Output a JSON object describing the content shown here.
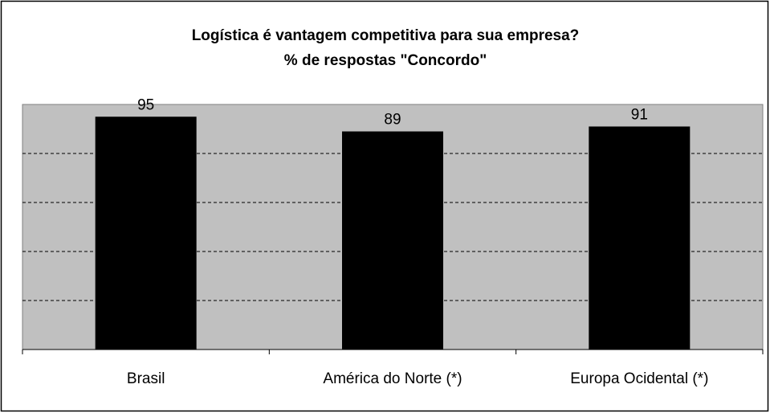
{
  "chart_data": {
    "type": "bar",
    "title": "Logística é vantagem competitiva para sua empresa?",
    "subtitle": "% de respostas \"Concordo\"",
    "categories": [
      "Brasil",
      "América do Norte (*)",
      "Europa Ocidental (*)"
    ],
    "values": [
      95,
      89,
      91
    ],
    "color": "#000000",
    "ylim": [
      0,
      100
    ],
    "yticks": [
      0,
      20,
      40,
      60,
      80,
      100
    ],
    "grid": true
  }
}
